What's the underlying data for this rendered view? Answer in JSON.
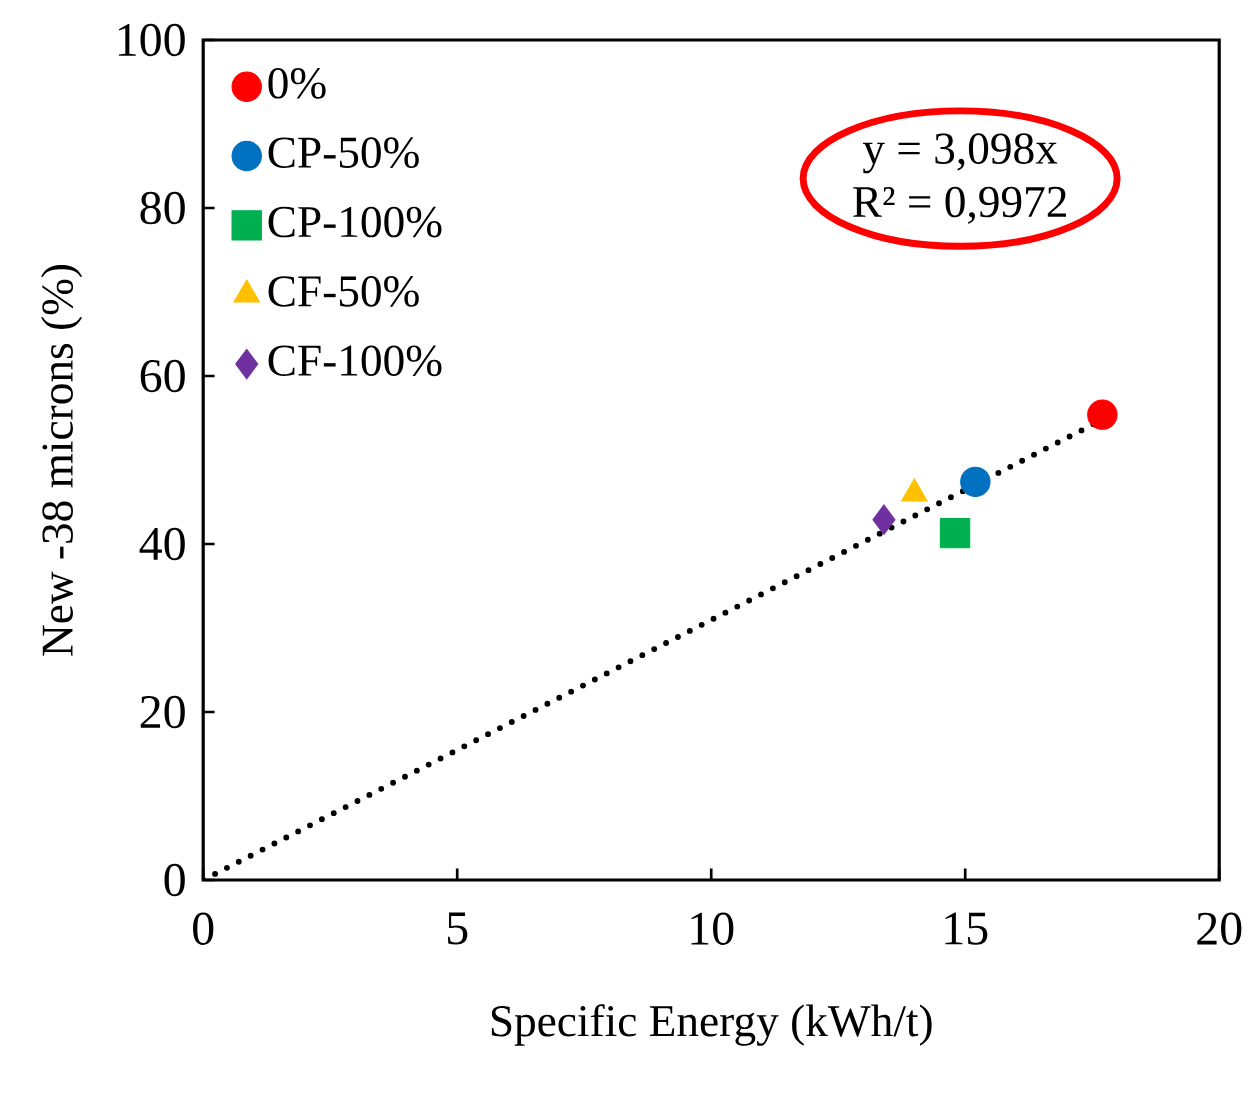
{
  "chart_data": {
    "type": "scatter",
    "xlabel": "Specific Energy (kWh/t)",
    "ylabel": "New -38 microns (%)",
    "xlim": [
      0,
      20
    ],
    "ylim": [
      0,
      100
    ],
    "xticks": [
      0,
      5,
      10,
      15,
      20
    ],
    "yticks": [
      0,
      20,
      40,
      60,
      80,
      100
    ],
    "legend": "top left",
    "grid": false,
    "annotations": [
      "y = 3,098x",
      "R² = 0,9972"
    ],
    "series": [
      {
        "name": "0%",
        "color": "#ff0000",
        "marker": "circle",
        "x": [
          17.7
        ],
        "values": [
          55.4
        ]
      },
      {
        "name": "CP-50%",
        "color": "#0070c0",
        "marker": "circle",
        "x": [
          15.2
        ],
        "values": [
          47.4
        ]
      },
      {
        "name": "CP-100%",
        "color": "#00b050",
        "marker": "square",
        "x": [
          14.8
        ],
        "values": [
          41.3
        ]
      },
      {
        "name": "CF-50%",
        "color": "#ffc000",
        "marker": "triangle",
        "x": [
          14.0
        ],
        "values": [
          46.0
        ]
      },
      {
        "name": "CF-100%",
        "color": "#7030a0",
        "marker": "diamond",
        "x": [
          13.4
        ],
        "values": [
          42.9
        ]
      },
      {
        "type": "line",
        "color": "#000000",
        "line_style": "dotted",
        "marker": "none",
        "x": [
          0,
          17.7
        ],
        "values": [
          0,
          54.8
        ]
      }
    ]
  }
}
